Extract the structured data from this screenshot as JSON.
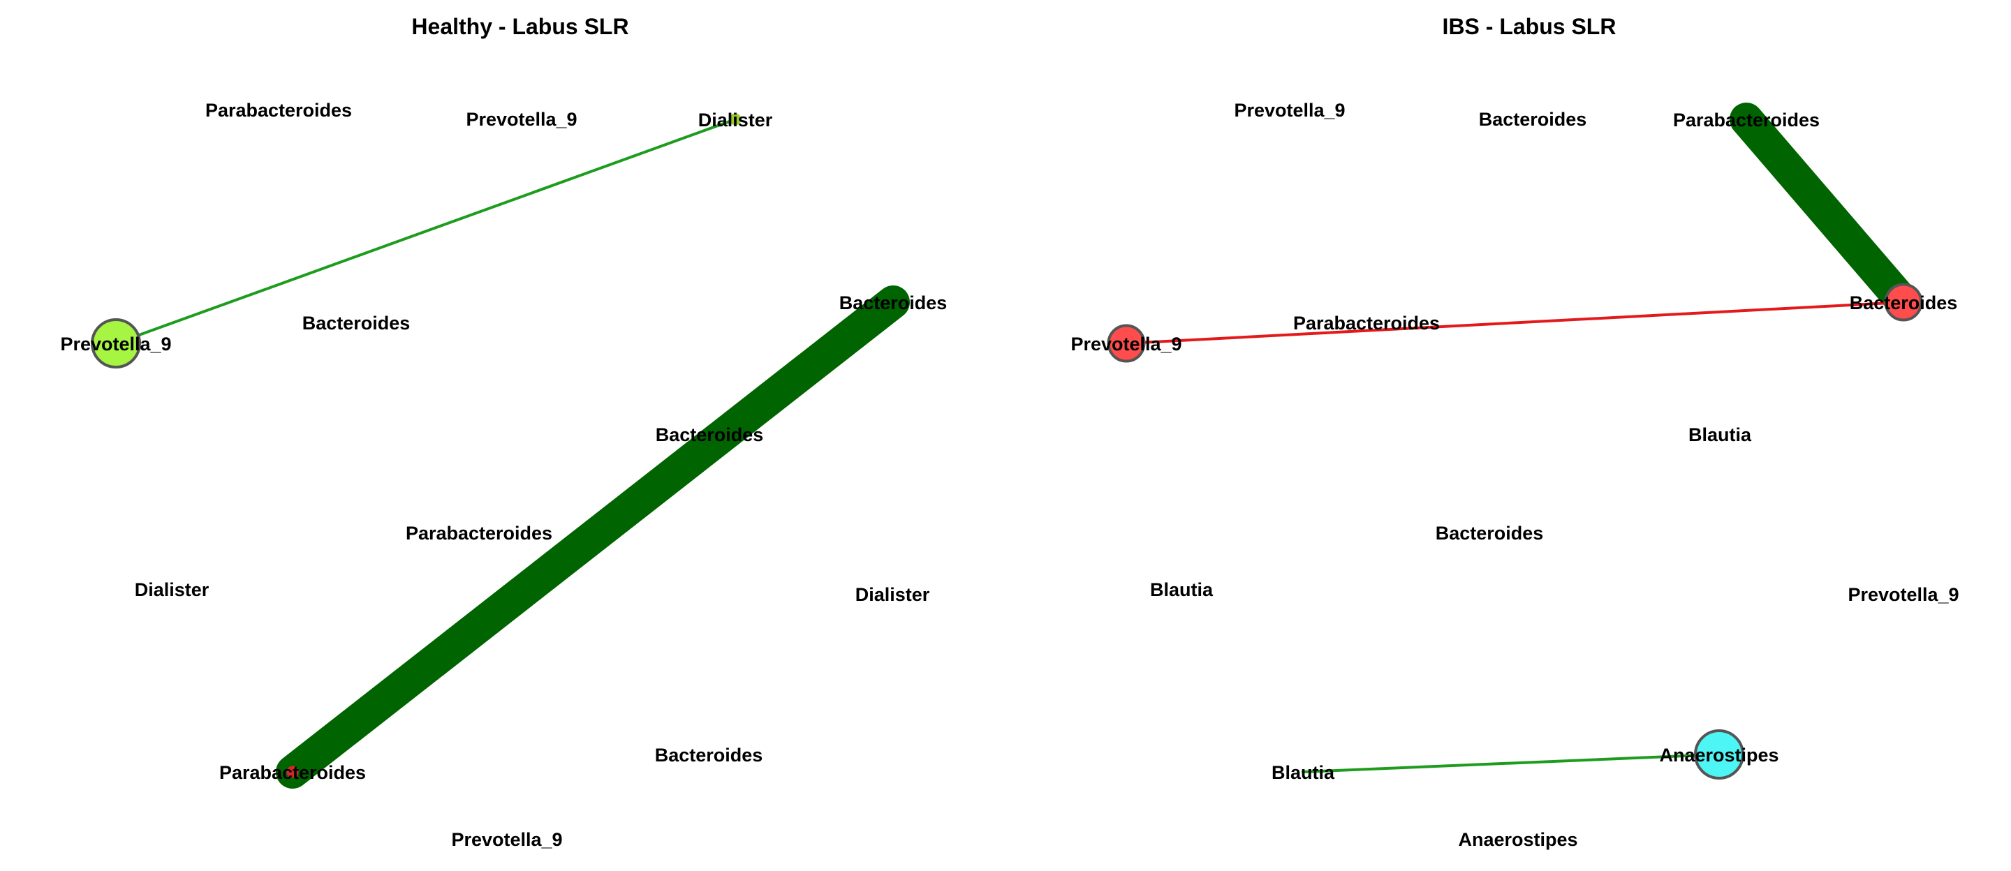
{
  "panels": [
    {
      "title": "Healthy - Labus SLR",
      "nodes": [
        {
          "label": "Parabacteroides",
          "color": "",
          "r": 0
        },
        {
          "label": "Prevotella_9",
          "color": "",
          "r": 0
        },
        {
          "label": "Dialister",
          "color": "#9ACD32",
          "r": 1
        },
        {
          "label": "Prevotella_9",
          "color": "#A5F542",
          "r": 4
        },
        {
          "label": "Bacteroides",
          "color": "",
          "r": 0
        },
        {
          "label": "Bacteroides",
          "color": "#006400",
          "r": 1
        },
        {
          "label": "Bacteroides",
          "color": "",
          "r": 0
        },
        {
          "label": "Parabacteroides",
          "color": "",
          "r": 0
        },
        {
          "label": "Dialister",
          "color": "",
          "r": 0
        },
        {
          "label": "Dialister",
          "color": "",
          "r": 0
        },
        {
          "label": "Parabacteroides",
          "color": "#D62728",
          "r": 1
        },
        {
          "label": "Bacteroides",
          "color": "",
          "r": 0
        },
        {
          "label": "Prevotella_9",
          "color": "",
          "r": 0
        }
      ],
      "edges": [
        {
          "from": 2,
          "to": 3,
          "color": "#1E9C1E",
          "weight": 1
        },
        {
          "from": 5,
          "to": 10,
          "color": "#006400",
          "weight": 12
        }
      ]
    },
    {
      "title": "IBS - Labus SLR",
      "nodes": [
        {
          "label": "Prevotella_9",
          "color": "",
          "r": 0
        },
        {
          "label": "Bacteroides",
          "color": "",
          "r": 0
        },
        {
          "label": "Parabacteroides",
          "color": "#006400",
          "r": 1
        },
        {
          "label": "Bacteroides",
          "color": "#FF4C4C",
          "r": 3
        },
        {
          "label": "Parabacteroides",
          "color": "",
          "r": 0
        },
        {
          "label": "Prevotella_9",
          "color": "#FF4C4C",
          "r": 3
        },
        {
          "label": "Blautia",
          "color": "",
          "r": 0
        },
        {
          "label": "Bacteroides",
          "color": "",
          "r": 0
        },
        {
          "label": "Blautia",
          "color": "",
          "r": 0
        },
        {
          "label": "Prevotella_9",
          "color": "",
          "r": 0
        },
        {
          "label": "Blautia",
          "color": "",
          "r": 0
        },
        {
          "label": "Anaerostipes",
          "color": "#4DF5F5",
          "r": 4
        },
        {
          "label": "Anaerostipes",
          "color": "",
          "r": 0
        }
      ],
      "edges": [
        {
          "from": 2,
          "to": 3,
          "color": "#006400",
          "weight": 12
        },
        {
          "from": 3,
          "to": 5,
          "color": "#E31A1C",
          "weight": 1
        },
        {
          "from": 10,
          "to": 11,
          "color": "#1E9C1E",
          "weight": 1
        }
      ]
    }
  ]
}
